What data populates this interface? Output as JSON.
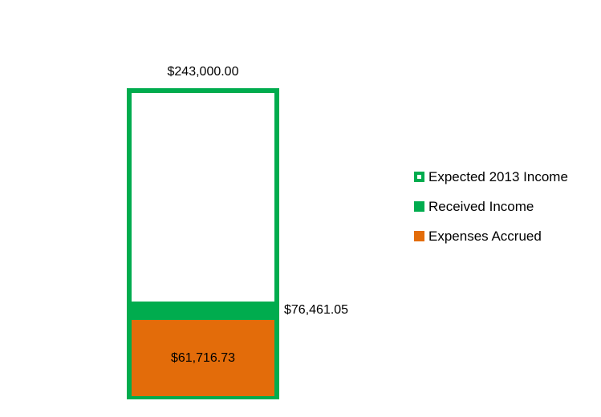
{
  "chart_data": {
    "type": "bar",
    "subtype": "overlapped-single-category",
    "title": "",
    "xlabel": "",
    "ylabel": "",
    "ylim": [
      0,
      243000
    ],
    "axes_visible": false,
    "gridlines": false,
    "background": "#FFFFFF",
    "legend_position": "right",
    "series": [
      {
        "name": "Expected 2013 Income",
        "value": 243000.0,
        "data_label": "$243,000.00",
        "data_label_position": "above-bar",
        "fill": "#FFFFFF",
        "border_color": "#00AC4E"
      },
      {
        "name": "Received Income",
        "value": 76461.05,
        "data_label": "$76,461.05",
        "data_label_position": "right-of-bar-top",
        "fill": "#00AC4E",
        "border_color": null
      },
      {
        "name": "Expenses Accrued",
        "value": 61716.73,
        "data_label": "$61,716.73",
        "data_label_position": "inside-center",
        "fill": "#E36C0A",
        "border_color": null
      }
    ]
  },
  "legend": {
    "items": [
      {
        "label": "Expected 2013 Income",
        "swatch": "outlined-green-square-icon",
        "color": "#00AC4E"
      },
      {
        "label": "Received Income",
        "swatch": "filled-green-square-icon",
        "color": "#00AC4E"
      },
      {
        "label": "Expenses Accrued",
        "swatch": "filled-orange-square-icon",
        "color": "#E36C0A"
      }
    ]
  },
  "colors": {
    "green": "#00AC4E",
    "orange": "#E36C0A",
    "text": "#000000",
    "background": "#FFFFFF"
  }
}
